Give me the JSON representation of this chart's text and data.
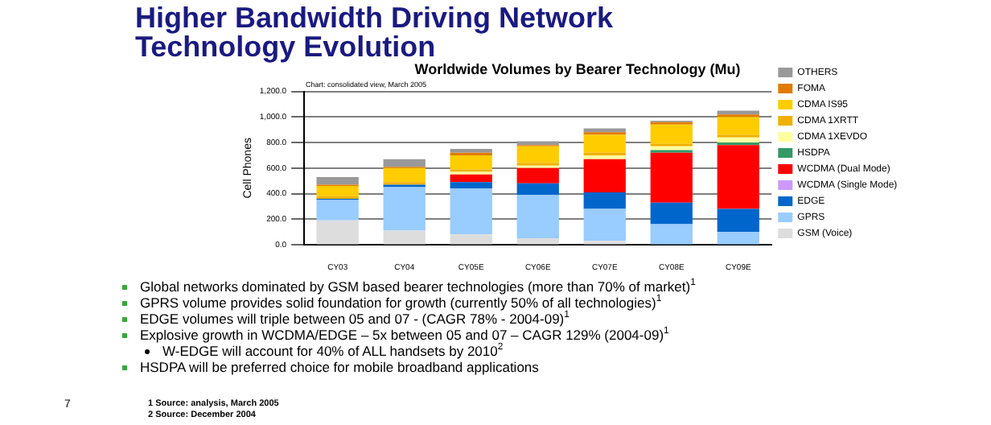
{
  "chart_data": {
    "type": "bar",
    "title": "Higher Bandwidth Driving Network Technology Evolution",
    "subtitle": "Worldwide Volumes by Bearer Technology (Mu)",
    "ylabel": "Cell Phones",
    "categories": [
      "CY03",
      "CY04",
      "CY05E",
      "CY06E",
      "CY07E",
      "CY08E",
      "CY09E"
    ],
    "stacked": true,
    "legend": "right",
    "grid": "y",
    "ylim": [
      0,
      1200
    ],
    "yticks": [
      {
        "value": 0,
        "label": "0.0"
      },
      {
        "value": 200,
        "label": "200.0"
      },
      {
        "value": 400,
        "label": "400.0"
      },
      {
        "value": 600,
        "label": "600.0"
      },
      {
        "value": 800,
        "label": "800.0"
      },
      {
        "value": 1000,
        "label": "1,000.0"
      },
      {
        "value": 1200,
        "label": "1,200.0"
      }
    ],
    "series": [
      {
        "name": "GSM (Voice)",
        "color": "#dddddd",
        "values": [
          190,
          110,
          80,
          50,
          30,
          null,
          null
        ]
      },
      {
        "name": "GPRS",
        "color": "#99ccff",
        "values": [
          160,
          340,
          360,
          340,
          250,
          160,
          100
        ]
      },
      {
        "name": "EDGE",
        "color": "#0066cc",
        "values": [
          10,
          20,
          50,
          90,
          130,
          170,
          180
        ]
      },
      {
        "name": "WCDMA (Single Mode)",
        "color": "#cc99ff",
        "values": [
          0,
          0,
          0,
          0,
          0,
          0,
          0
        ]
      },
      {
        "name": "WCDMA (Dual Mode)",
        "color": "#ff0000",
        "values": [
          0,
          0,
          60,
          120,
          260,
          390,
          500
        ]
      },
      {
        "name": "HSDPA",
        "color": "#339966",
        "values": [
          0,
          0,
          0,
          0,
          0,
          20,
          20
        ]
      },
      {
        "name": "CDMA 1XEVDO",
        "color": "#ffffa0",
        "values": [
          0,
          0,
          20,
          20,
          30,
          30,
          40
        ]
      },
      {
        "name": "CDMA 1XRTT",
        "color": "#f0b000",
        "values": [
          20,
          20,
          20,
          20,
          20,
          20,
          20
        ]
      },
      {
        "name": "CDMA IS95",
        "color": "#ffcc00",
        "values": [
          80,
          110,
          110,
          130,
          140,
          150,
          140
        ]
      },
      {
        "name": "FOMA",
        "color": "#e07b00",
        "values": [
          10,
          10,
          20,
          10,
          20,
          20,
          20
        ]
      },
      {
        "name": "OTHERS",
        "color": "#999999",
        "values": [
          60,
          60,
          30,
          30,
          30,
          10,
          30
        ]
      }
    ],
    "annotations": [
      "Chart: consolidated view, March 2005",
      "Global networks dominated by GSM based bearer technologies (more than 70% of market)$^{1}$",
      "GPRS volume provides solid foundation for growth (currently 50% of all technologies)$^{1}$",
      "EDGE volumes will triple between 05 and 07 -  (CAGR 78% - 2004-09)$^{1}$",
      "Explosive growth in WCDMA/EDGE – 5x between 05 and 07 – CAGR 129% (2004-09)$^{1}$",
      "W-EDGE will account for 40% of ALL handsets by 2010$^{2}$",
      "HSDPA will be preferred choice for mobile broadband applications",
      "1 Source: analysis, March 2005",
      "2 Source: December 2004",
      "7"
    ]
  }
}
